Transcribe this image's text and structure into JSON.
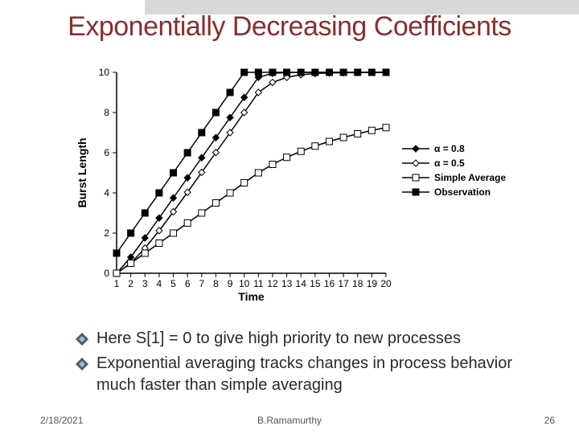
{
  "slide": {
    "title": "Exponentially Decreasing Coefficients",
    "title_color": "#8b2e2e",
    "title_fontsize": 34,
    "bullets": [
      "Here S[1] = 0 to give high priority to new processes",
      "Exponential averaging tracks changes in process behavior much faster than simple averaging"
    ],
    "footer_date": "2/18/2021",
    "footer_author": "B.Ramamurthy",
    "footer_page": "26",
    "bullet_icon_colors": {
      "outer": "#4a5a7a",
      "inner": "#9aa8c0"
    }
  },
  "chart": {
    "type": "line",
    "xlabel": "Time",
    "ylabel": "Burst Length",
    "label_fontsize": 14,
    "tick_fontsize": 12,
    "xlim": [
      1,
      20
    ],
    "ylim": [
      0,
      10
    ],
    "xtick_step": 1,
    "ytick_step": 2,
    "background_color": "#ffffff",
    "axis_color": "#000000",
    "axis_linewidth": 1.5,
    "series": [
      {
        "name": "alpha_08",
        "label": "α = 0.8",
        "marker": "diamond",
        "marker_fill": "#000000",
        "marker_size": 8,
        "line_color": "#000000",
        "line_width": 1.5,
        "values": [
          0,
          0.8,
          1.76,
          2.75,
          3.75,
          4.75,
          5.75,
          6.75,
          7.75,
          8.75,
          9.75,
          9.95,
          9.99,
          10,
          10,
          10,
          10,
          10,
          10,
          10
        ]
      },
      {
        "name": "alpha_05",
        "label": "α = 0.5",
        "marker": "diamond",
        "marker_fill": "#ffffff",
        "marker_size": 8,
        "line_color": "#000000",
        "line_width": 1.5,
        "values": [
          0,
          0.5,
          1.25,
          2.12,
          3.06,
          4.03,
          5.02,
          6.01,
          7.0,
          8.0,
          9.0,
          9.5,
          9.75,
          9.88,
          9.94,
          9.97,
          9.98,
          9.99,
          10,
          10
        ]
      },
      {
        "name": "simple_average",
        "label": "Simple Average",
        "marker": "square",
        "marker_fill": "#ffffff",
        "marker_size": 8,
        "line_color": "#000000",
        "line_width": 1.5,
        "values": [
          0,
          0.5,
          1.0,
          1.5,
          2.0,
          2.5,
          3.0,
          3.5,
          4.0,
          4.5,
          5.0,
          5.42,
          5.77,
          6.07,
          6.33,
          6.56,
          6.76,
          6.94,
          7.11,
          7.25
        ]
      },
      {
        "name": "observation",
        "label": "Observation",
        "marker": "square",
        "marker_fill": "#000000",
        "marker_size": 8,
        "line_color": "#000000",
        "line_width": 1.5,
        "values": [
          1,
          2,
          3,
          4,
          5,
          6,
          7,
          8,
          9,
          10,
          10,
          10,
          10,
          10,
          10,
          10,
          10,
          10,
          10,
          10
        ]
      }
    ],
    "legend": {
      "position": "right",
      "order": [
        "alpha_08",
        "alpha_05",
        "simple_average",
        "observation"
      ]
    }
  }
}
